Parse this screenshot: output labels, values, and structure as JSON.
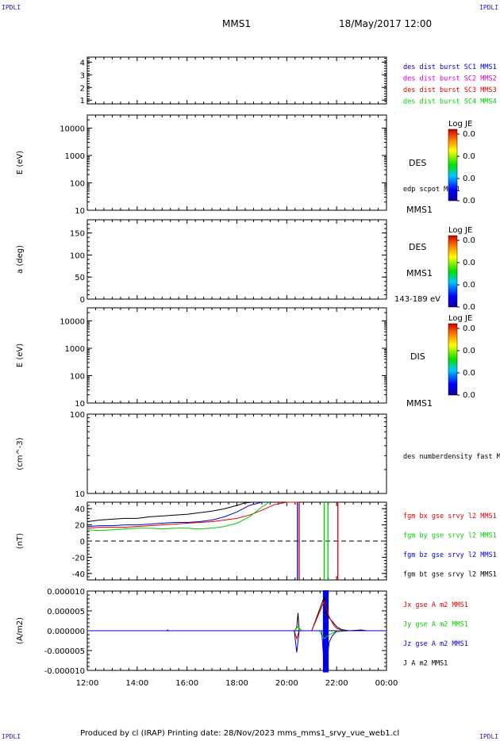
{
  "corner_label": "IPDLI",
  "header": {
    "spacecraft": "MMS1",
    "date": "18/May/2017 12:00"
  },
  "footer": {
    "text": "Produced by cl (IRAP)   Printing date: 28/Nov/2023   mms_mms1_srvy_vue_web1.cl"
  },
  "colors": {
    "bx": "#dd0000",
    "by": "#00cc00",
    "bz": "#0000cc",
    "bt": "#000000",
    "sc1": "#0000cc",
    "sc2": "#cc00cc",
    "sc3": "#dd0000",
    "sc4": "#00cc00"
  },
  "chart_data": {
    "type": "line",
    "time_axis": {
      "ticks": [
        "12:00",
        "14:00",
        "16:00",
        "18:00",
        "20:00",
        "22:00",
        "00:00"
      ],
      "range_hours": [
        12,
        24
      ]
    },
    "panels": [
      {
        "id": "sc-availability",
        "ylabel": "",
        "ylim": [
          0.7,
          4.4
        ],
        "yticks": [
          "1",
          "2",
          "3",
          "4"
        ],
        "legend": [
          {
            "label": "des dist burst SC1 MMS1",
            "color": "#0000cc"
          },
          {
            "label": "des dist burst SC2 MMS2",
            "color": "#cc00cc"
          },
          {
            "label": "des dist burst SC3 MMS3",
            "color": "#dd0000"
          },
          {
            "label": "des dist burst SC4 MMS4",
            "color": "#00cc00"
          }
        ]
      },
      {
        "id": "des-energy",
        "ylabel": "E (eV)",
        "scale": "log",
        "ylim": [
          10,
          30000
        ],
        "yticks": [
          "10",
          "100",
          "1000",
          "10000"
        ],
        "side_labels": [
          "DES",
          "edp scpot MMS1",
          "MMS1"
        ],
        "colorbar": {
          "title": "Log JE",
          "ticks": [
            "0.0",
            "0.0",
            "0.0",
            "0.0"
          ]
        }
      },
      {
        "id": "des-pitch",
        "ylabel": "a (deg)",
        "ylim": [
          0,
          180
        ],
        "yticks": [
          "0",
          "50",
          "100",
          "150"
        ],
        "side_labels": [
          "DES",
          "MMS1",
          "143-189 eV"
        ],
        "colorbar": {
          "title": "Log JE",
          "ticks": [
            "0.0",
            "0.0",
            "0.0",
            "0.0"
          ]
        }
      },
      {
        "id": "dis-energy",
        "ylabel": "E (eV)",
        "scale": "log",
        "ylim": [
          10,
          30000
        ],
        "yticks": [
          "10",
          "100",
          "1000",
          "10000"
        ],
        "side_labels": [
          "DIS",
          "MMS1"
        ],
        "colorbar": {
          "title": "Log JE",
          "ticks": [
            "0.0",
            "0.0",
            "0.0",
            "0.0"
          ]
        }
      },
      {
        "id": "density",
        "ylabel": "(cm^-3)",
        "scale": "log",
        "ylim": [
          10,
          100
        ],
        "yticks": [
          "10",
          "100"
        ],
        "legend": [
          {
            "label": "des numberdensity fast M",
            "color": "#000000"
          }
        ]
      },
      {
        "id": "magnetic-field",
        "ylabel": "(nT)",
        "ylim": [
          -48,
          48
        ],
        "yticks": [
          "-40",
          "-20",
          "0",
          "20",
          "40"
        ],
        "legend": [
          {
            "label": "fgm bx gse srvy l2 MMS1",
            "color": "#dd0000"
          },
          {
            "label": "fgm by gse srvy l2 MMS1",
            "color": "#00cc00"
          },
          {
            "label": "fgm bz gse srvy l2 MMS1",
            "color": "#0000cc"
          },
          {
            "label": "fgm bt gse srvy l2 MMS1",
            "color": "#000000"
          }
        ],
        "series": [
          {
            "name": "fgm bt gse srvy l2 MMS1",
            "color": "#000000",
            "x": [
              12.0,
              12.5,
              13.0,
              13.5,
              14.0,
              14.5,
              15.0,
              15.5,
              16.0,
              16.5,
              17.0,
              17.5,
              18.0,
              18.3,
              18.6
            ],
            "y": [
              24,
              26,
              27,
              28,
              28,
              30,
              31,
              32,
              33,
              35,
              37,
              40,
              44,
              47,
              49
            ]
          },
          {
            "name": "fgm bz gse srvy l2 MMS1",
            "color": "#0000cc",
            "x": [
              12.0,
              12.5,
              13.0,
              13.5,
              14.0,
              14.5,
              15.0,
              15.5,
              16.0,
              16.5,
              17.0,
              17.5,
              18.0,
              18.5,
              19.0
            ],
            "y": [
              18,
              19,
              19,
              20,
              20,
              21,
              22,
              23,
              23,
              24,
              26,
              30,
              36,
              44,
              49
            ]
          },
          {
            "name": "fgm bx gse srvy l2 MMS1",
            "color": "#dd0000",
            "x": [
              12.0,
              12.5,
              13.0,
              13.5,
              14.0,
              14.5,
              15.0,
              15.5,
              16.0,
              16.5,
              17.0,
              17.5,
              18.0,
              18.5,
              19.0,
              19.5,
              20.0,
              20.5
            ],
            "y": [
              16,
              17,
              17,
              17,
              18,
              19,
              20,
              21,
              22,
              23,
              24,
              26,
              28,
              32,
              38,
              45,
              49,
              49
            ]
          },
          {
            "name": "fgm by gse srvy l2 MMS1",
            "color": "#00cc00",
            "x": [
              12.0,
              12.5,
              13.0,
              13.5,
              14.0,
              14.5,
              15.0,
              15.5,
              16.0,
              16.5,
              17.0,
              17.5,
              18.0,
              18.5,
              19.0,
              19.3
            ],
            "y": [
              14,
              13,
              14,
              15,
              16,
              16,
              15,
              16,
              16,
              15,
              16,
              18,
              22,
              30,
              42,
              49
            ]
          }
        ],
        "verticals": [
          {
            "x": 20.43,
            "y1": 48,
            "y2": -48,
            "color": "#0000cc"
          },
          {
            "x": 20.5,
            "y1": 48,
            "y2": -48,
            "color": "#dd0000"
          },
          {
            "x": 21.5,
            "y1": 48,
            "y2": -48,
            "color": "#00cc00"
          },
          {
            "x": 21.65,
            "y1": 48,
            "y2": -48,
            "color": "#00cc00"
          },
          {
            "x": 22.05,
            "y1": 48,
            "y2": -48,
            "color": "#dd0000"
          }
        ],
        "zero_line": true
      },
      {
        "id": "current-density",
        "ylabel": "(A/m2)",
        "ylim": [
          -1e-05,
          1e-05
        ],
        "yticks": [
          "-0.000010",
          "-0.000005",
          "0.000000",
          "0.000005",
          "0.000010"
        ],
        "legend": [
          {
            "label": "Jx gse A m2 MMS1",
            "color": "#dd0000"
          },
          {
            "label": "Jy gse A m2 MMS1",
            "color": "#00cc00"
          },
          {
            "label": "Jz gse A m2 MMS1",
            "color": "#0000cc"
          },
          {
            "label": "J A m2 MMS1",
            "color": "#000000"
          }
        ],
        "series": [
          {
            "name": "J A m2 MMS1",
            "color": "#000000",
            "x": [
              12.0,
              15.2,
              15.22,
              15.24,
              20.3,
              20.4,
              20.45,
              20.5,
              21.0,
              21.5,
              21.6,
              21.8,
              22.0,
              22.2,
              22.5,
              23.0,
              23.2,
              24.0
            ],
            "y": [
              0.0,
              0.0,
              2e-07,
              0.0,
              0.0,
              8e-07,
              4.5e-06,
              0.0,
              0.0,
              8.5e-06,
              4e-06,
              2.5e-06,
              1e-06,
              3e-07,
              0.0,
              2e-07,
              0.0,
              0.0
            ]
          },
          {
            "name": "Jx gse A m2 MMS1",
            "color": "#dd0000",
            "x": [
              12.0,
              20.3,
              20.4,
              20.5,
              21.0,
              21.5,
              21.7,
              21.9,
              22.0,
              22.2,
              22.5,
              24.0
            ],
            "y": [
              0.0,
              0.0,
              -2e-06,
              0.0,
              0.0,
              7.5e-06,
              3.5e-06,
              1.2e-06,
              6e-07,
              2e-07,
              0.0,
              0.0
            ]
          },
          {
            "name": "Jy gse A m2 MMS1",
            "color": "#00cc00",
            "x": [
              12.0,
              20.3,
              20.45,
              20.6,
              21.0,
              21.3,
              21.5,
              21.7,
              21.9,
              22.1,
              22.5,
              24.0
            ],
            "y": [
              0.0,
              0.0,
              1e-06,
              0.0,
              0.0,
              0.0,
              -2e-06,
              -1e-06,
              -4e-07,
              -2e-07,
              0.0,
              0.0
            ]
          },
          {
            "name": "Jz gse A m2 MMS1",
            "color": "#0000cc",
            "x": [
              12.0,
              20.3,
              20.4,
              20.5,
              21.0,
              21.4,
              21.5,
              21.6,
              21.7,
              21.8,
              22.0,
              24.0
            ],
            "y": [
              0.0,
              0.0,
              -5.5e-06,
              0.0,
              0.0,
              0.0,
              -9e-06,
              -8e-06,
              -3e-06,
              -1.5e-06,
              0.0,
              0.0
            ]
          }
        ],
        "band": {
          "x0": 21.45,
          "x1": 21.68,
          "y0": -1.05e-05,
          "y1": 1.02e-05,
          "color": "#0000ee"
        }
      }
    ]
  }
}
